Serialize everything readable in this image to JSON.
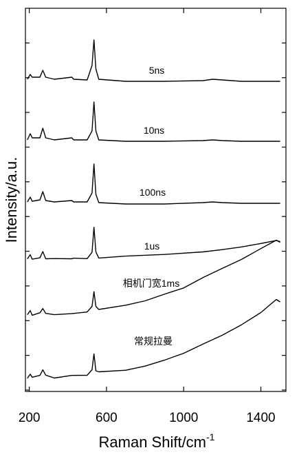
{
  "chart_data": {
    "type": "line",
    "xlabel": "Raman Shift/cm",
    "xlabel_superscript": "-1",
    "ylabel": "Intensity/a.u.",
    "xlim": [
      180,
      1530
    ],
    "x_ticks": [
      200,
      600,
      1000,
      1400
    ],
    "x_tick_labels": [
      "200",
      "600",
      "1000",
      "1400"
    ],
    "grid": false,
    "legend": "none",
    "y_scale": "arbitrary (stacked, offset)",
    "line_color": "#000000",
    "series": [
      {
        "name": "5ns",
        "points": [
          [
            190,
            115
          ],
          [
            205,
            108
          ],
          [
            215,
            112
          ],
          [
            255,
            112
          ],
          [
            270,
            102
          ],
          [
            285,
            112
          ],
          [
            330,
            115
          ],
          [
            420,
            112
          ],
          [
            430,
            115
          ],
          [
            500,
            116
          ],
          [
            525,
            95
          ],
          [
            535,
            58
          ],
          [
            545,
            100
          ],
          [
            560,
            115
          ],
          [
            700,
            118
          ],
          [
            900,
            118
          ],
          [
            1100,
            117
          ],
          [
            1150,
            115
          ],
          [
            1200,
            116
          ],
          [
            1300,
            118
          ],
          [
            1500,
            118
          ]
        ]
      },
      {
        "name": "10ns",
        "points": [
          [
            190,
            203
          ],
          [
            205,
            194
          ],
          [
            215,
            200
          ],
          [
            255,
            200
          ],
          [
            270,
            186
          ],
          [
            285,
            200
          ],
          [
            330,
            203
          ],
          [
            420,
            200
          ],
          [
            430,
            203
          ],
          [
            500,
            203
          ],
          [
            525,
            190
          ],
          [
            535,
            148
          ],
          [
            545,
            190
          ],
          [
            560,
            203
          ],
          [
            700,
            205
          ],
          [
            900,
            205
          ],
          [
            1100,
            204
          ],
          [
            1150,
            203
          ],
          [
            1200,
            204
          ],
          [
            1300,
            205
          ],
          [
            1500,
            205
          ]
        ]
      },
      {
        "name": "100ns",
        "points": [
          [
            190,
            293
          ],
          [
            205,
            286
          ],
          [
            215,
            292
          ],
          [
            255,
            290
          ],
          [
            270,
            278
          ],
          [
            285,
            291
          ],
          [
            330,
            293
          ],
          [
            420,
            291
          ],
          [
            430,
            293
          ],
          [
            500,
            293
          ],
          [
            525,
            280
          ],
          [
            535,
            238
          ],
          [
            545,
            282
          ],
          [
            560,
            294
          ],
          [
            700,
            296
          ],
          [
            900,
            296
          ],
          [
            1100,
            294
          ],
          [
            1150,
            293
          ],
          [
            1200,
            294
          ],
          [
            1300,
            295
          ],
          [
            1500,
            295
          ]
        ]
      },
      {
        "name": "1us",
        "points": [
          [
            190,
            377
          ],
          [
            205,
            370
          ],
          [
            215,
            375
          ],
          [
            255,
            374
          ],
          [
            270,
            364
          ],
          [
            285,
            374
          ],
          [
            330,
            376
          ],
          [
            420,
            374
          ],
          [
            430,
            376
          ],
          [
            500,
            376
          ],
          [
            525,
            365
          ],
          [
            535,
            330
          ],
          [
            545,
            366
          ],
          [
            560,
            374
          ],
          [
            700,
            373
          ],
          [
            900,
            369
          ],
          [
            1100,
            364
          ],
          [
            1200,
            361
          ],
          [
            1300,
            358
          ],
          [
            1400,
            354
          ],
          [
            1480,
            350
          ],
          [
            1500,
            352
          ]
        ]
      },
      {
        "name": "相机门宽1ms",
        "points": [
          [
            190,
            458
          ],
          [
            205,
            452
          ],
          [
            215,
            456
          ],
          [
            255,
            455
          ],
          [
            270,
            448
          ],
          [
            285,
            454
          ],
          [
            330,
            456
          ],
          [
            420,
            454
          ],
          [
            500,
            452
          ],
          [
            525,
            445
          ],
          [
            535,
            422
          ],
          [
            545,
            446
          ],
          [
            560,
            450
          ],
          [
            700,
            444
          ],
          [
            800,
            438
          ],
          [
            900,
            428
          ],
          [
            1000,
            418
          ],
          [
            1100,
            402
          ],
          [
            1200,
            388
          ],
          [
            1300,
            375
          ],
          [
            1400,
            360
          ],
          [
            1480,
            350
          ],
          [
            1500,
            352
          ]
        ]
      },
      {
        "name": "常规拉曼",
        "points": [
          [
            190,
            549
          ],
          [
            205,
            544
          ],
          [
            215,
            547
          ],
          [
            255,
            546
          ],
          [
            270,
            538
          ],
          [
            285,
            545
          ],
          [
            330,
            547
          ],
          [
            420,
            545
          ],
          [
            500,
            543
          ],
          [
            525,
            538
          ],
          [
            535,
            512
          ],
          [
            545,
            539
          ],
          [
            560,
            541
          ],
          [
            700,
            537
          ],
          [
            800,
            532
          ],
          [
            900,
            524
          ],
          [
            1000,
            514
          ],
          [
            1100,
            500
          ],
          [
            1200,
            486
          ],
          [
            1300,
            470
          ],
          [
            1400,
            452
          ],
          [
            1480,
            435
          ],
          [
            1500,
            437
          ]
        ]
      }
    ]
  }
}
